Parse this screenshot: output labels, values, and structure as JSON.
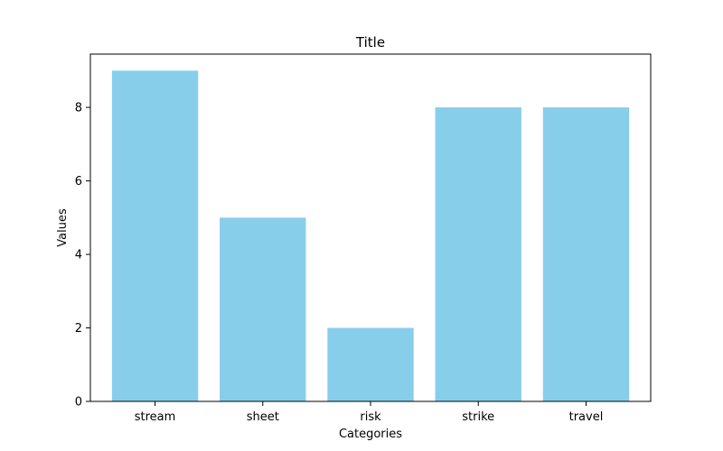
{
  "chart_data": {
    "type": "bar",
    "title": "Title",
    "xlabel": "Categories",
    "ylabel": "Values",
    "categories": [
      "stream",
      "sheet",
      "risk",
      "strike",
      "travel"
    ],
    "values": [
      9,
      5,
      2,
      8,
      8
    ],
    "ylim": [
      0,
      9.45
    ],
    "yticks": [
      0,
      2,
      4,
      6,
      8
    ],
    "grid": false,
    "bar_color": "#87CEEB",
    "axis_color": "#000000",
    "background_color": "#ffffff"
  }
}
